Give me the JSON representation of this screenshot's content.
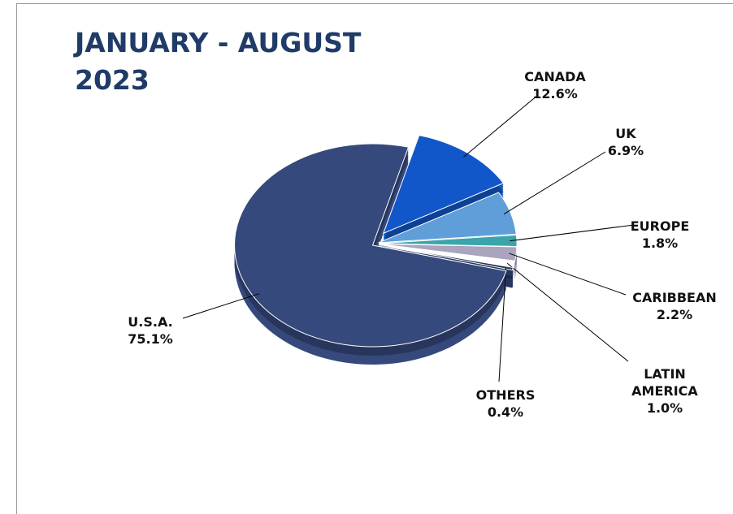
{
  "chart_data": {
    "type": "pie",
    "title": "JANUARY - AUGUST 2023",
    "categories": [
      "CANADA",
      "UK",
      "EUROPE",
      "CARIBBEAN",
      "LATIN AMERICA",
      "OTHERS",
      "U.S.A."
    ],
    "values": [
      12.6,
      6.9,
      1.8,
      2.2,
      1.0,
      0.4,
      75.1
    ],
    "value_labels": [
      "12.6%",
      "6.9%",
      "1.8%",
      "2.2%",
      "1.0%",
      "0.4%",
      "75.1%"
    ],
    "colors": [
      "#1257c9",
      "#5f9ed8",
      "#3aa5aa",
      "#aaa4be",
      "#ffffff",
      "#26355c",
      "#36497c"
    ]
  }
}
